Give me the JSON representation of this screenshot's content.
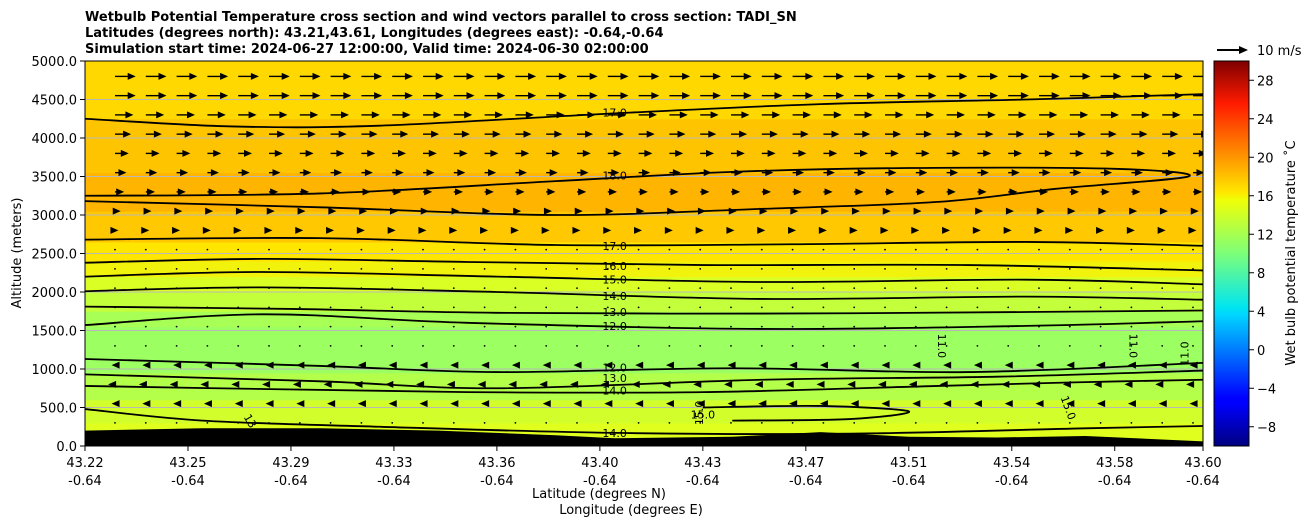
{
  "chart_data": {
    "type": "contour",
    "title_lines": [
      "Wetbulb Potential Temperature cross section and wind vectors parallel to cross section: TADI_SN",
      "Latitudes (degrees north): 43.21,43.61, Longitudes (degrees east): -0.64,-0.64",
      "Simulation start time: 2024-06-27 12:00:00, Valid time: 2024-06-30 02:00:00"
    ],
    "xlabel_line1": "Latitude (degrees N)",
    "xlabel_line2": "Longitude (degrees E)",
    "ylabel": "Altitude (meters)",
    "xlim": [
      43.22,
      43.6
    ],
    "ylim": [
      0,
      5000
    ],
    "x_ticks": [
      {
        "lat": "43.22",
        "lon": "-0.64",
        "v": 43.22
      },
      {
        "lat": "43.25",
        "lon": "-0.64",
        "v": 43.255
      },
      {
        "lat": "43.29",
        "lon": "-0.64",
        "v": 43.29
      },
      {
        "lat": "43.33",
        "lon": "-0.64",
        "v": 43.325
      },
      {
        "lat": "43.36",
        "lon": "-0.64",
        "v": 43.36
      },
      {
        "lat": "43.40",
        "lon": "-0.64",
        "v": 43.395
      },
      {
        "lat": "43.43",
        "lon": "-0.64",
        "v": 43.43
      },
      {
        "lat": "43.47",
        "lon": "-0.64",
        "v": 43.465
      },
      {
        "lat": "43.51",
        "lon": "-0.64",
        "v": 43.5
      },
      {
        "lat": "43.54",
        "lon": "-0.64",
        "v": 43.535
      },
      {
        "lat": "43.58",
        "lon": "-0.64",
        "v": 43.57
      },
      {
        "lat": "43.60",
        "lon": "-0.64",
        "v": 43.6
      }
    ],
    "y_ticks": [
      {
        "label": "0.0",
        "v": 0
      },
      {
        "label": "500.0",
        "v": 500
      },
      {
        "label": "1000.0",
        "v": 1000
      },
      {
        "label": "1500.0",
        "v": 1500
      },
      {
        "label": "2000.0",
        "v": 2000
      },
      {
        "label": "2500.0",
        "v": 2500
      },
      {
        "label": "3000.0",
        "v": 3000
      },
      {
        "label": "3500.0",
        "v": 3500
      },
      {
        "label": "4000.0",
        "v": 4000
      },
      {
        "label": "4500.0",
        "v": 4500
      },
      {
        "label": "5000.0",
        "v": 5000
      }
    ],
    "grid": "horizontal",
    "colorbar": {
      "label": "Wet bulb potential temperature ˚C",
      "range": [
        -10,
        30
      ],
      "ticks": [
        {
          "label": "−8",
          "v": -8
        },
        {
          "label": "−4",
          "v": -4
        },
        {
          "label": "0",
          "v": 0
        },
        {
          "label": "4",
          "v": 4
        },
        {
          "label": "8",
          "v": 8
        },
        {
          "label": "12",
          "v": 12
        },
        {
          "label": "16",
          "v": 16
        },
        {
          "label": "20",
          "v": 20
        },
        {
          "label": "24",
          "v": 24
        },
        {
          "label": "28",
          "v": 28
        }
      ]
    },
    "fill_bands": [
      {
        "y0": 0,
        "y1": 300,
        "value": 15.0,
        "color": "#e0ff1e"
      },
      {
        "y0": 300,
        "y1": 600,
        "value": 14.0,
        "color": "#d2ff2c"
      },
      {
        "y0": 600,
        "y1": 950,
        "value": 13.5,
        "color": "#b4ff4a"
      },
      {
        "y0": 950,
        "y1": 1550,
        "value": 12.0,
        "color": "#9cff62"
      },
      {
        "y0": 1550,
        "y1": 1750,
        "value": 12.5,
        "color": "#a8ff56"
      },
      {
        "y0": 1750,
        "y1": 2000,
        "value": 13.5,
        "color": "#c3ff3b"
      },
      {
        "y0": 2000,
        "y1": 2200,
        "value": 14.5,
        "color": "#daff24"
      },
      {
        "y0": 2200,
        "y1": 2400,
        "value": 15.5,
        "color": "#f2f30c"
      },
      {
        "y0": 2400,
        "y1": 2650,
        "value": 16.5,
        "color": "#ffe600"
      },
      {
        "y0": 2650,
        "y1": 3050,
        "value": 17.5,
        "color": "#ffc800"
      },
      {
        "y0": 3050,
        "y1": 3550,
        "value": 18.3,
        "color": "#ffb400"
      },
      {
        "y0": 3550,
        "y1": 4250,
        "value": 17.8,
        "color": "#ffc400"
      },
      {
        "y0": 4250,
        "y1": 5000,
        "value": 16.8,
        "color": "#ffd800"
      }
    ],
    "contours": [
      {
        "level": "17.0",
        "label_at": [
          43.4,
          4330
        ],
        "points": [
          [
            43.22,
            4250
          ],
          [
            43.27,
            4150
          ],
          [
            43.32,
            4160
          ],
          [
            43.4,
            4320
          ],
          [
            43.47,
            4440
          ],
          [
            43.54,
            4500
          ],
          [
            43.6,
            4570
          ]
        ]
      },
      {
        "level": "18.0",
        "label_at": [
          43.4,
          3510
        ],
        "points": [
          [
            43.22,
            3250
          ],
          [
            43.3,
            3280
          ],
          [
            43.38,
            3440
          ],
          [
            43.44,
            3560
          ],
          [
            43.5,
            3610
          ],
          [
            43.57,
            3600
          ],
          [
            43.595,
            3500
          ],
          [
            43.55,
            3340
          ],
          [
            43.51,
            3170
          ],
          [
            43.45,
            3080
          ],
          [
            43.38,
            3000
          ],
          [
            43.3,
            3100
          ],
          [
            43.22,
            3180
          ]
        ]
      },
      {
        "level": "17.0",
        "label_at": [
          43.4,
          2600
        ],
        "points": [
          [
            43.22,
            2680
          ],
          [
            43.3,
            2700
          ],
          [
            43.38,
            2610
          ],
          [
            43.46,
            2620
          ],
          [
            43.54,
            2650
          ],
          [
            43.6,
            2600
          ]
        ]
      },
      {
        "level": "16.0",
        "label_at": [
          43.4,
          2340
        ],
        "points": [
          [
            43.22,
            2380
          ],
          [
            43.28,
            2430
          ],
          [
            43.35,
            2390
          ],
          [
            43.43,
            2350
          ],
          [
            43.52,
            2350
          ],
          [
            43.6,
            2280
          ]
        ]
      },
      {
        "level": "15.0",
        "label_at": [
          43.4,
          2160
        ],
        "points": [
          [
            43.22,
            2200
          ],
          [
            43.28,
            2260
          ],
          [
            43.36,
            2200
          ],
          [
            43.45,
            2130
          ],
          [
            43.54,
            2160
          ],
          [
            43.6,
            2100
          ]
        ]
      },
      {
        "level": "14.0",
        "label_at": [
          43.4,
          1950
        ],
        "points": [
          [
            43.22,
            2010
          ],
          [
            43.28,
            2060
          ],
          [
            43.36,
            2000
          ],
          [
            43.45,
            1910
          ],
          [
            43.54,
            1940
          ],
          [
            43.6,
            1900
          ]
        ]
      },
      {
        "level": "13.0",
        "label_at": [
          43.4,
          1740
        ],
        "points": [
          [
            43.22,
            1810
          ],
          [
            43.29,
            1780
          ],
          [
            43.36,
            1730
          ],
          [
            43.45,
            1720
          ],
          [
            43.54,
            1740
          ],
          [
            43.6,
            1760
          ]
        ]
      },
      {
        "level": "12.0",
        "label_at": [
          43.4,
          1560
        ],
        "points": [
          [
            43.22,
            1570
          ],
          [
            43.28,
            1710
          ],
          [
            43.35,
            1600
          ],
          [
            43.45,
            1520
          ],
          [
            43.54,
            1560
          ],
          [
            43.6,
            1620
          ]
        ]
      },
      {
        "level": "12.0",
        "label_at": [
          43.4,
          1020
        ],
        "points": [
          [
            43.22,
            1130
          ],
          [
            43.3,
            1040
          ],
          [
            43.36,
            960
          ],
          [
            43.44,
            1010
          ],
          [
            43.52,
            960
          ],
          [
            43.6,
            1080
          ]
        ]
      },
      {
        "level": "13.0",
        "label_at": [
          43.4,
          880
        ],
        "points": [
          [
            43.22,
            930
          ],
          [
            43.3,
            840
          ],
          [
            43.36,
            750
          ],
          [
            43.45,
            860
          ],
          [
            43.53,
            900
          ],
          [
            43.6,
            980
          ]
        ]
      },
      {
        "level": "14.0",
        "label_at": [
          43.4,
          720
        ],
        "points": [
          [
            43.22,
            780
          ],
          [
            43.28,
            740
          ],
          [
            43.35,
            700
          ],
          [
            43.43,
            700
          ],
          [
            43.51,
            780
          ],
          [
            43.56,
            830
          ],
          [
            43.6,
            860
          ]
        ]
      },
      {
        "level": "15.0",
        "label_at": [
          43.43,
          410
        ],
        "points": [
          [
            43.43,
            500
          ],
          [
            43.47,
            520
          ],
          [
            43.5,
            450
          ],
          [
            43.48,
            350
          ],
          [
            43.44,
            330
          ]
        ]
      },
      {
        "level": "14.0",
        "label_at": [
          43.4,
          170
        ],
        "points": [
          [
            43.22,
            480
          ],
          [
            43.26,
            330
          ],
          [
            43.32,
            250
          ],
          [
            43.4,
            170
          ],
          [
            43.48,
            160
          ],
          [
            43.56,
            230
          ],
          [
            43.6,
            260
          ]
        ]
      }
    ],
    "side_labels": [
      {
        "text": "11.0",
        "at": [
          43.51,
          1300
        ],
        "rotate": 90
      },
      {
        "text": "11.0",
        "at": [
          43.575,
          1300
        ],
        "rotate": 90
      },
      {
        "text": "11.0",
        "at": [
          43.595,
          1200
        ],
        "rotate": -90
      },
      {
        "text": "15.0",
        "at": [
          43.553,
          480
        ],
        "rotate": 70
      },
      {
        "text": "15.0",
        "at": [
          43.43,
          430
        ],
        "rotate": -90
      },
      {
        "text": "13",
        "at": [
          43.275,
          300
        ],
        "rotate": 60
      }
    ],
    "terrain": [
      [
        43.22,
        200
      ],
      [
        43.26,
        230
      ],
      [
        43.3,
        230
      ],
      [
        43.34,
        200
      ],
      [
        43.38,
        140
      ],
      [
        43.4,
        100
      ],
      [
        43.44,
        120
      ],
      [
        43.47,
        180
      ],
      [
        43.5,
        120
      ],
      [
        43.53,
        110
      ],
      [
        43.56,
        130
      ],
      [
        43.6,
        60
      ]
    ],
    "wind": {
      "reference": {
        "value": 10,
        "label": "10 m/s"
      },
      "rows": [
        {
          "z": 4800,
          "u": 9
        },
        {
          "z": 4550,
          "u": 9
        },
        {
          "z": 4300,
          "u": 8
        },
        {
          "z": 4050,
          "u": 7
        },
        {
          "z": 3800,
          "u": 6
        },
        {
          "z": 3550,
          "u": 5
        },
        {
          "z": 3300,
          "u": 4
        },
        {
          "z": 3050,
          "u": 2.5
        },
        {
          "z": 2800,
          "u": 1.5
        },
        {
          "z": 2550,
          "u": 0.8
        },
        {
          "z": 2300,
          "u": 0.5
        },
        {
          "z": 2050,
          "u": 0.5
        },
        {
          "z": 1800,
          "u": 0.3
        },
        {
          "z": 1550,
          "u": -0.3
        },
        {
          "z": 1300,
          "u": -1
        },
        {
          "z": 1050,
          "u": -1.5
        },
        {
          "z": 800,
          "u": -3
        },
        {
          "z": 550,
          "u": -1.5
        },
        {
          "z": 300,
          "u": -0.5
        }
      ],
      "columns": 36
    }
  }
}
